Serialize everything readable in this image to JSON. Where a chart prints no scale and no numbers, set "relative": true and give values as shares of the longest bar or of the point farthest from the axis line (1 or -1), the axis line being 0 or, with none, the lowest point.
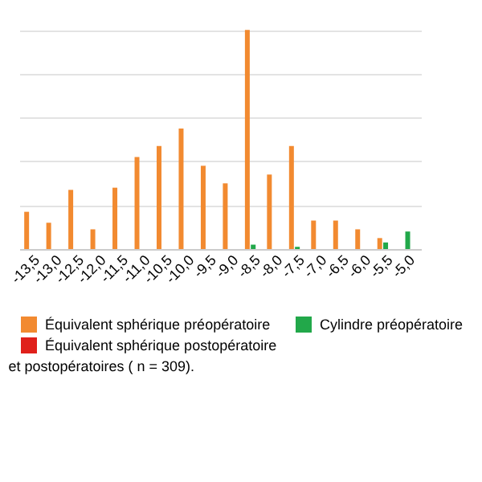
{
  "chart_data": {
    "type": "bar",
    "relative": true,
    "grid": "y",
    "legend": "bottom",
    "categories": [
      "-13,5",
      "-13,0",
      "-12,5",
      "-12,0",
      "-11,5",
      "-11,0",
      "-10,5",
      "-10,0",
      "-9,5",
      "-9,0",
      "-8,5",
      "-8,0",
      "-7,5",
      "-7,0",
      "-6,5",
      "-6,0",
      "-5,5",
      "-5,0"
    ],
    "series": [
      {
        "name": "Équivalent sphérique préopératoire",
        "color": "#f28a30",
        "values": [
          0.17,
          0.12,
          0.27,
          0.09,
          0.28,
          0.42,
          0.47,
          0.55,
          0.38,
          0.3,
          1,
          0.34,
          0.47,
          0.13,
          0.13,
          0.09,
          0.05,
          null
        ]
      },
      {
        "name": "Cylindre préopératoire",
        "color": "#22a84a",
        "values": [
          null,
          null,
          null,
          null,
          null,
          null,
          null,
          null,
          null,
          null,
          0.02,
          null,
          0.01,
          null,
          null,
          null,
          0.03,
          0.08
        ]
      },
      {
        "name": "Équivalent sphérique postopératoire",
        "color": "#e0201b",
        "values": [
          null,
          null,
          null,
          null,
          null,
          null,
          null,
          null,
          null,
          null,
          null,
          null,
          null,
          null,
          null,
          null,
          null,
          null
        ]
      }
    ],
    "annotations": [
      "et postopératoires ( n = 309)."
    ]
  }
}
